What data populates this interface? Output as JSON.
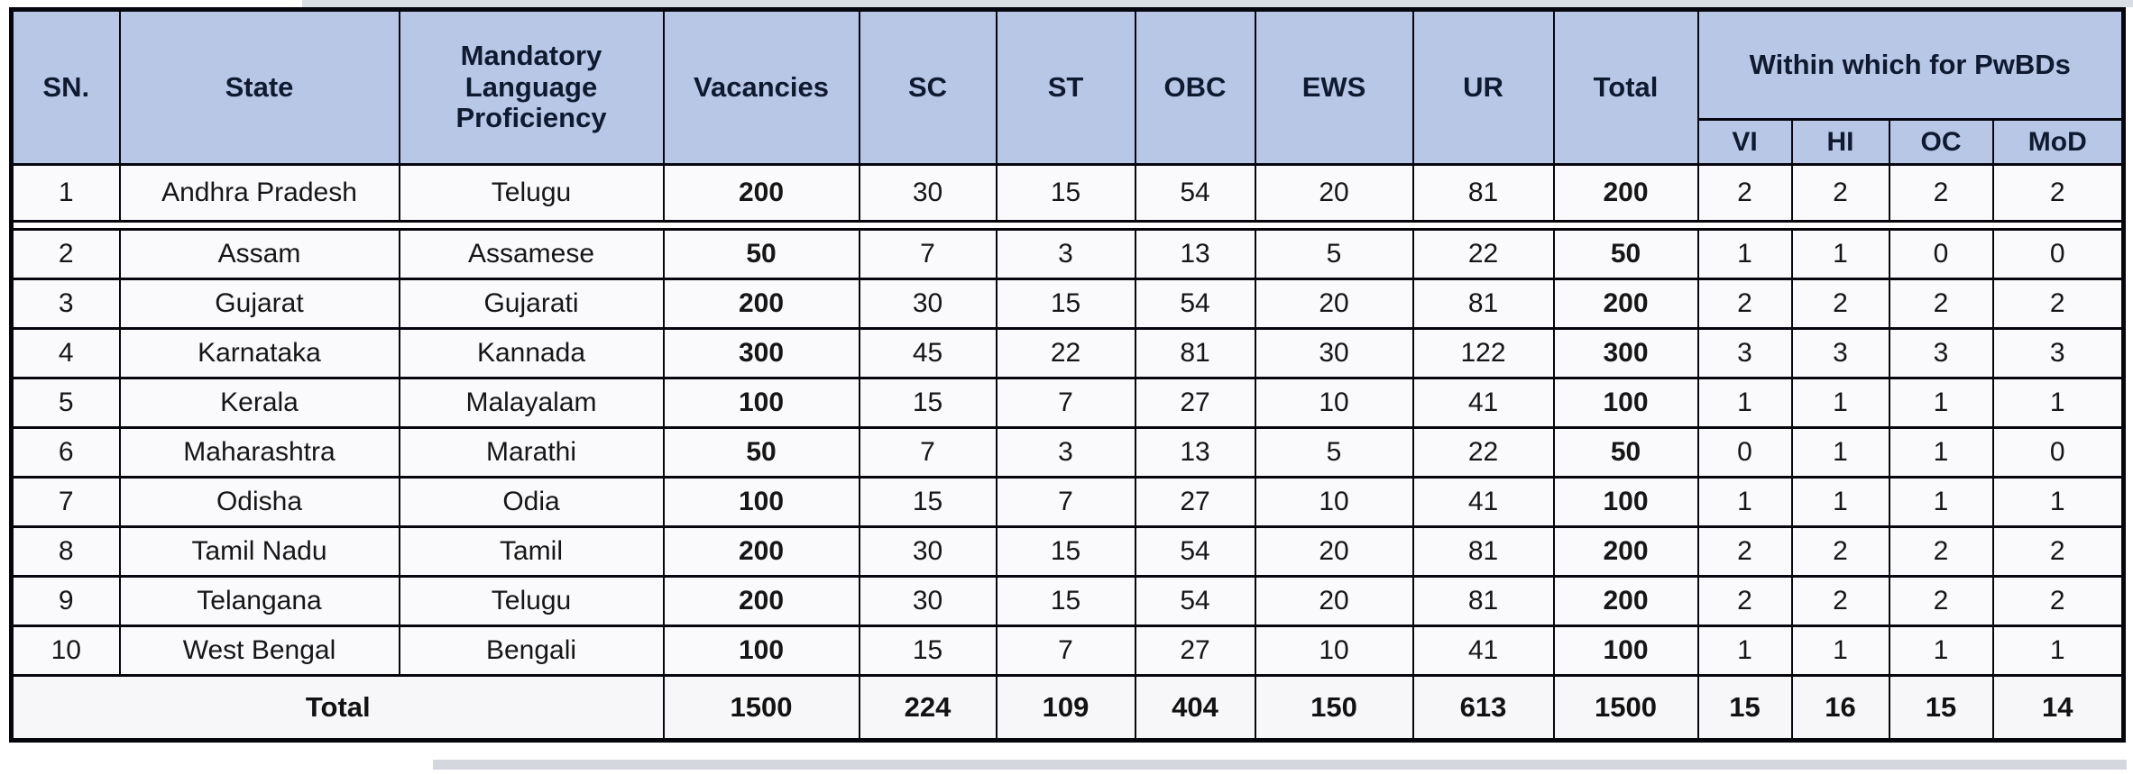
{
  "table": {
    "headers": {
      "sn": "SN.",
      "state": "State",
      "language": "Mandatory Language Proficiency",
      "vacancies": "Vacancies",
      "sc": "SC",
      "st": "ST",
      "obc": "OBC",
      "ews": "EWS",
      "ur": "UR",
      "total": "Total",
      "pwbd_group": "Within which for PwBDs",
      "vi": "VI",
      "hi": "HI",
      "oc": "OC",
      "mod": "MoD"
    },
    "column_keys": [
      "sn",
      "state",
      "language",
      "vacancies",
      "sc",
      "st",
      "obc",
      "ews",
      "ur",
      "total",
      "vi",
      "hi",
      "oc",
      "mod"
    ],
    "rows": [
      [
        "1",
        "Andhra Pradesh",
        "Telugu",
        "200",
        "30",
        "15",
        "54",
        "20",
        "81",
        "200",
        "2",
        "2",
        "2",
        "2"
      ],
      [
        "2",
        "Assam",
        "Assamese",
        "50",
        "7",
        "3",
        "13",
        "5",
        "22",
        "50",
        "1",
        "1",
        "0",
        "0"
      ],
      [
        "3",
        "Gujarat",
        "Gujarati",
        "200",
        "30",
        "15",
        "54",
        "20",
        "81",
        "200",
        "2",
        "2",
        "2",
        "2"
      ],
      [
        "4",
        "Karnataka",
        "Kannada",
        "300",
        "45",
        "22",
        "81",
        "30",
        "122",
        "300",
        "3",
        "3",
        "3",
        "3"
      ],
      [
        "5",
        "Kerala",
        "Malayalam",
        "100",
        "15",
        "7",
        "27",
        "10",
        "41",
        "100",
        "1",
        "1",
        "1",
        "1"
      ],
      [
        "6",
        "Maharashtra",
        "Marathi",
        "50",
        "7",
        "3",
        "13",
        "5",
        "22",
        "50",
        "0",
        "1",
        "1",
        "0"
      ],
      [
        "7",
        "Odisha",
        "Odia",
        "100",
        "15",
        "7",
        "27",
        "10",
        "41",
        "100",
        "1",
        "1",
        "1",
        "1"
      ],
      [
        "8",
        "Tamil Nadu",
        "Tamil",
        "200",
        "30",
        "15",
        "54",
        "20",
        "81",
        "200",
        "2",
        "2",
        "2",
        "2"
      ],
      [
        "9",
        "Telangana",
        "Telugu",
        "200",
        "30",
        "15",
        "54",
        "20",
        "81",
        "200",
        "2",
        "2",
        "2",
        "2"
      ],
      [
        "10",
        "West Bengal",
        "Bengali",
        "100",
        "15",
        "7",
        "27",
        "10",
        "41",
        "100",
        "1",
        "1",
        "1",
        "1"
      ]
    ],
    "total_row": {
      "label": "Total",
      "values": [
        "1500",
        "224",
        "109",
        "404",
        "150",
        "613",
        "1500",
        "15",
        "16",
        "15",
        "14"
      ]
    }
  },
  "colors": {
    "header_bg": "#b9c7e7",
    "border": "#06060f",
    "row_bg": "#fafafc",
    "total_row_bg": "#f7f7f9"
  }
}
